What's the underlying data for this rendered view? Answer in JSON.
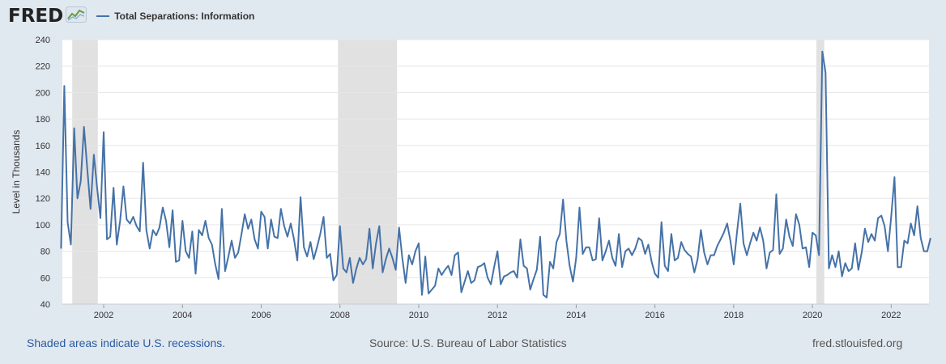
{
  "header": {
    "logo_text": "FRED",
    "logo_icon": "line-graph-icon",
    "legend_label": "Total Separations: Information"
  },
  "colors": {
    "series": "#4572a7",
    "recession": "#e1e1e1",
    "background": "#e1e9f0",
    "plot": "#ffffff",
    "grid": "#e6e6e6"
  },
  "footer": {
    "recession_note": "Shaded areas indicate U.S. recessions.",
    "source": "Source: U.S. Bureau of Labor Statistics",
    "site": "fred.stlouisfed.org"
  },
  "chart_data": {
    "type": "line",
    "ylabel": "Level in Thousands",
    "ylim": [
      40,
      240
    ],
    "yticks": [
      40,
      60,
      80,
      100,
      120,
      140,
      160,
      180,
      200,
      220,
      240
    ],
    "xlim": [
      2000.95,
      2022.96
    ],
    "xticks": [
      2002,
      2004,
      2006,
      2008,
      2010,
      2012,
      2014,
      2016,
      2018,
      2020,
      2022
    ],
    "grid": true,
    "legend": "top-left",
    "recessions": [
      [
        2001.2,
        2001.85
      ],
      [
        2007.95,
        2009.45
      ],
      [
        2020.1,
        2020.3
      ]
    ],
    "start": "2000-12",
    "frequency": "monthly",
    "series": [
      {
        "name": "Total Separations: Information",
        "values": [
          82,
          205,
          102,
          85,
          173,
          120,
          133,
          174,
          142,
          112,
          153,
          128,
          105,
          170,
          89,
          91,
          128,
          85,
          103,
          129,
          104,
          101,
          106,
          99,
          95,
          147,
          96,
          82,
          96,
          92,
          98,
          113,
          103,
          83,
          111,
          72,
          73,
          103,
          80,
          75,
          95,
          63,
          96,
          92,
          103,
          90,
          85,
          70,
          59,
          112,
          65,
          76,
          88,
          75,
          79,
          93,
          108,
          97,
          104,
          89,
          82,
          110,
          106,
          82,
          104,
          91,
          90,
          112,
          99,
          91,
          101,
          89,
          73,
          121,
          83,
          76,
          87,
          74,
          83,
          93,
          106,
          75,
          78,
          58,
          62,
          99,
          67,
          64,
          75,
          56,
          67,
          75,
          70,
          74,
          97,
          67,
          86,
          99,
          64,
          74,
          82,
          75,
          66,
          98,
          75,
          56,
          77,
          70,
          80,
          86,
          47,
          76,
          48,
          51,
          54,
          67,
          62,
          66,
          69,
          62,
          77,
          79,
          49,
          57,
          65,
          56,
          58,
          68,
          69,
          71,
          60,
          55,
          68,
          80,
          55,
          61,
          62,
          64,
          65,
          60,
          89,
          69,
          67,
          51,
          59,
          66,
          91,
          47,
          45,
          72,
          67,
          87,
          93,
          119,
          88,
          69,
          57,
          75,
          113,
          78,
          83,
          83,
          73,
          74,
          105,
          73,
          80,
          88,
          75,
          69,
          93,
          68,
          80,
          82,
          77,
          82,
          90,
          88,
          78,
          85,
          72,
          63,
          60,
          102,
          69,
          65,
          93,
          73,
          75,
          87,
          81,
          78,
          76,
          64,
          74,
          96,
          79,
          70,
          77,
          77,
          84,
          89,
          94,
          101,
          88,
          70,
          94,
          116,
          86,
          77,
          86,
          94,
          88,
          98,
          88,
          67,
          79,
          81,
          123,
          78,
          82,
          104,
          91,
          84,
          108,
          100,
          82,
          83,
          68,
          94,
          92,
          77,
          231,
          215,
          67,
          77,
          68,
          80,
          61,
          71,
          65,
          67,
          86,
          66,
          79,
          97,
          87,
          93,
          88,
          105,
          107,
          99,
          80,
          106,
          136,
          68,
          68,
          88,
          86,
          101,
          92,
          114,
          90,
          80,
          80,
          90
        ]
      }
    ]
  }
}
